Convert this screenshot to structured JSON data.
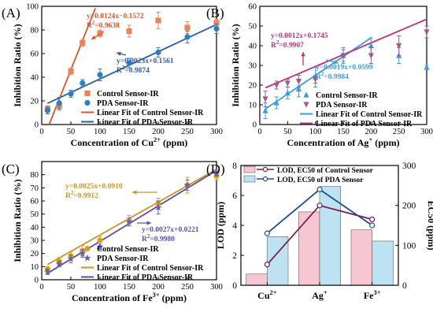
{
  "chart_data": [
    {
      "panel": "(A)",
      "type": "scatter",
      "xlabel_base": "Concentration of Cu",
      "xlabel_sup": "2+",
      "xlabel_unit": " (ppm)",
      "ylabel": "Inhibition Ratio (%)",
      "xlim": [
        0,
        300
      ],
      "ylim": [
        0,
        100
      ],
      "xticks": [
        0,
        50,
        100,
        150,
        200,
        250,
        300
      ],
      "yticks": [
        0,
        20,
        40,
        60,
        80,
        100
      ],
      "series": [
        {
          "name": "Control Sensor-IR",
          "marker": "square",
          "color": "#e8855a",
          "x": [
            10,
            30,
            50,
            70,
            100,
            150,
            200,
            250,
            300
          ],
          "y": [
            13,
            16,
            45,
            69,
            77,
            79,
            88,
            82,
            86
          ],
          "err": [
            3,
            4,
            3,
            3,
            3,
            5,
            7,
            5,
            3
          ]
        },
        {
          "name": "PDA Sensor-IR",
          "marker": "circle",
          "color": "#2f7ebd",
          "x": [
            10,
            30,
            50,
            70,
            100,
            150,
            200,
            250,
            300
          ],
          "y": [
            12,
            18,
            26,
            35,
            42,
            52,
            61,
            74,
            81
          ],
          "err": [
            3,
            5,
            3,
            3,
            5,
            4,
            4,
            5,
            4
          ]
        }
      ],
      "fits": [
        {
          "name": "Linear Fit of Control Sensor-IR",
          "color": "#d9562b",
          "slope": 0.0124,
          "intercept": -0.1572,
          "x_range": [
            10,
            92
          ],
          "equation": "y=0.0124x−0.1572",
          "r2_label": "R",
          "r2_value": "=0.9638"
        },
        {
          "name": "Linear Fit of PDA Sensor-IR",
          "color": "#2f5aa5",
          "slope": 0.0023,
          "intercept": 0.1561,
          "x_range": [
            10,
            300
          ],
          "equation": "y=0.0023x+0.1561",
          "r2_label": "R",
          "r2_value": "=0.9874"
        }
      ],
      "legend": [
        "Control Sensor-IR",
        "PDA Sensor-IR",
        "Linear Fit of Control Sensor-IR",
        "Linear Fit of PDA Sensor-IR"
      ]
    },
    {
      "panel": "(B)",
      "type": "scatter",
      "xlabel_base": "Concentration of Ag",
      "xlabel_sup": "+",
      "xlabel_unit": " (ppm)",
      "ylabel": "Inhibition Ratio (%)",
      "xlim": [
        0,
        300
      ],
      "ylim": [
        0,
        60
      ],
      "xticks": [
        0,
        50,
        100,
        150,
        200,
        250,
        300
      ],
      "yticks": [
        0,
        10,
        20,
        30,
        40,
        50,
        60
      ],
      "series": [
        {
          "name": "Control Sensor-IR",
          "marker": "triangle-up",
          "color": "#3b9de0",
          "x": [
            10,
            30,
            50,
            70,
            100,
            150,
            200,
            250,
            300
          ],
          "y": [
            7,
            11,
            16,
            18,
            24,
            35,
            40,
            35,
            29
          ],
          "err": [
            4,
            3,
            3,
            4,
            5,
            4,
            4,
            4,
            1
          ]
        },
        {
          "name": "PDA Sensor-IR",
          "marker": "triangle-down",
          "color": "#a05a8c",
          "x": [
            10,
            30,
            50,
            70,
            100,
            150,
            200,
            250,
            300
          ],
          "y": [
            13,
            20,
            21,
            22,
            23,
            35,
            35,
            40,
            47
          ],
          "err": [
            4,
            2,
            2,
            3,
            2,
            3,
            4,
            5,
            3
          ]
        }
      ],
      "fits": [
        {
          "name": "Linear Fit of Control Sensor-IR",
          "color": "#3b9de0",
          "slope": 0.0019,
          "intercept": 0.0599,
          "x_range": [
            10,
            200
          ],
          "equation": "y=0.0019x+0.0599",
          "r2_label": "R",
          "r2_value": "=0.9984"
        },
        {
          "name": "Linear Fit of PDA Sensor-IR",
          "color": "#c0307a",
          "slope": 0.0012,
          "intercept": 0.1745,
          "x_range": [
            10,
            300
          ],
          "equation": "y=0.0012x+0.1745",
          "r2_label": "R",
          "r2_value": "=0.9907"
        }
      ],
      "legend": [
        "Control Sensor-IR",
        "PDA Sensor-IR",
        "Linear Fit of Control Sensor-IR",
        "Linear Fit of PDA Sensor-IR"
      ]
    },
    {
      "panel": "(C)",
      "type": "scatter",
      "xlabel_base": "Concentration of Fe",
      "xlabel_sup": "3+",
      "xlabel_unit": " (ppm)",
      "ylabel": "Inhibition Ratio (%)",
      "xlim": [
        0,
        300
      ],
      "ylim": [
        0,
        90
      ],
      "xticks": [
        0,
        50,
        100,
        150,
        200,
        250,
        300
      ],
      "yticks": [
        0,
        10,
        20,
        30,
        40,
        50,
        60,
        70,
        80
      ],
      "series": [
        {
          "name": "Control Sensor-IR",
          "marker": "circle",
          "color": "#d4a020",
          "x": [
            10,
            30,
            50,
            70,
            100,
            150,
            200,
            250,
            300
          ],
          "y": [
            8,
            14,
            18,
            22,
            30,
            45,
            58,
            72,
            79
          ],
          "err": [
            2,
            3,
            3,
            4,
            3,
            4,
            4,
            6,
            3
          ]
        },
        {
          "name": "PDA Sensor-IR",
          "marker": "star",
          "color": "#6b5fb0",
          "x": [
            10,
            30,
            50,
            70,
            100,
            150,
            200,
            250,
            300
          ],
          "y": [
            6,
            12,
            16,
            20,
            25,
            44,
            55,
            72,
            81
          ],
          "err": [
            2,
            2,
            3,
            3,
            2,
            3,
            5,
            4,
            2
          ]
        }
      ],
      "fits": [
        {
          "name": "Linear Fit of Control Sensor-IR",
          "color": "#c9952b",
          "slope": 0.0025,
          "intercept": 0.091,
          "x_range": [
            10,
            300
          ],
          "equation": "y=0.0025x+0.0910",
          "r2_label": "R",
          "r2_value": "=0.9912"
        },
        {
          "name": "Linear Fit of PDA Sensor-IR",
          "color": "#5a4fa8",
          "slope": 0.0027,
          "intercept": 0.0221,
          "x_range": [
            10,
            300
          ],
          "equation": "y=0.0027x+0.0221",
          "r2_label": "R",
          "r2_value": "=0.9980"
        }
      ],
      "legend": [
        "Control Sensor-IR",
        "PDA Sensor-IR",
        "Linear Fit of Control Sensor-IR",
        "Linear Fit of PDA Sensor-IR"
      ]
    },
    {
      "panel": "(D)",
      "type": "bar",
      "categories": [
        {
          "base": "Cu",
          "sup": "2+"
        },
        {
          "base": "Ag",
          "sup": "+"
        },
        {
          "base": "Fe",
          "sup": "3+"
        }
      ],
      "ylabel": "LOD (ppm)",
      "ylim": [
        0,
        8
      ],
      "yticks": [
        0,
        2,
        4,
        6,
        8
      ],
      "y2label": "EC50 (ppm)",
      "y2lim": [
        0,
        300
      ],
      "y2ticks": [
        0,
        100,
        200,
        300
      ],
      "series": [
        {
          "name": "LOD of Control Sensor",
          "color": "#f7c6d3",
          "values": [
            0.75,
            4.9,
            3.7
          ]
        },
        {
          "name": "LOD of PDA Sensor",
          "color": "#bde3f2",
          "values": [
            3.25,
            6.6,
            2.95
          ]
        }
      ],
      "lines": [
        {
          "name": "LOD, EC50 of Control Sensor",
          "color": "#7a1f4a",
          "ec50": [
            52,
            200,
            165
          ]
        },
        {
          "name": "LOD, EC50 of PDA Sensor",
          "color": "#1f4f86",
          "ec50": [
            130,
            240,
            150
          ]
        }
      ],
      "legend": [
        "LOD, EC50 of Control Sensor",
        "LOD, EC50 of PDA Sensor"
      ]
    }
  ]
}
